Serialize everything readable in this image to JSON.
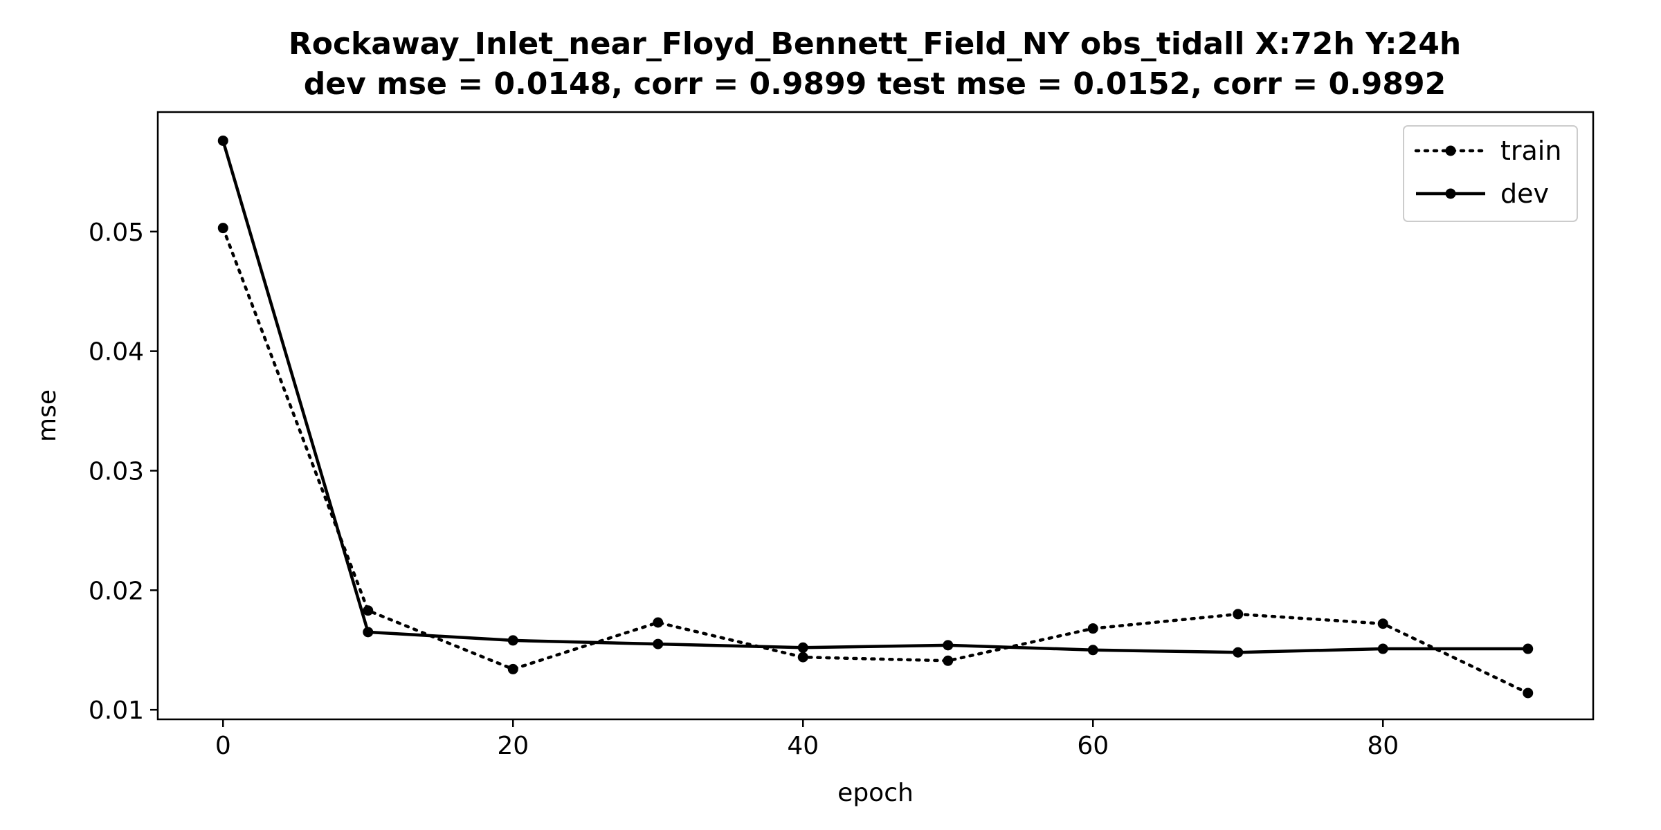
{
  "chart_data": {
    "type": "line",
    "title": "Rockaway_Inlet_near_Floyd_Bennett_Field_NY   obs_tidall   X:72h   Y:24h",
    "subtitle": "dev mse = 0.0148, corr = 0.9899   test mse = 0.0152, corr = 0.9892",
    "xlabel": "epoch",
    "ylabel": "mse",
    "x": [
      0,
      10,
      20,
      30,
      40,
      50,
      60,
      70,
      80,
      90
    ],
    "xlim": [
      -4.5,
      94.5
    ],
    "ylim": [
      0.0092,
      0.06
    ],
    "xticks": [
      0,
      20,
      40,
      60,
      80
    ],
    "yticks": [
      0.01,
      0.02,
      0.03,
      0.04,
      0.05
    ],
    "xtick_labels": [
      "0",
      "20",
      "40",
      "60",
      "80"
    ],
    "ytick_labels": [
      "0.01",
      "0.02",
      "0.03",
      "0.04",
      "0.05"
    ],
    "grid": false,
    "legend_position": "top-right",
    "series": [
      {
        "name": "train",
        "style": "dotted",
        "marker": "circle",
        "color": "#000000",
        "values": [
          0.0503,
          0.0183,
          0.0134,
          0.0173,
          0.0144,
          0.0141,
          0.0168,
          0.018,
          0.0172,
          0.0114
        ]
      },
      {
        "name": "dev",
        "style": "solid",
        "marker": "circle",
        "color": "#000000",
        "values": [
          0.0576,
          0.0165,
          0.0158,
          0.0155,
          0.0152,
          0.0154,
          0.015,
          0.0148,
          0.0151,
          0.0151
        ]
      }
    ]
  }
}
